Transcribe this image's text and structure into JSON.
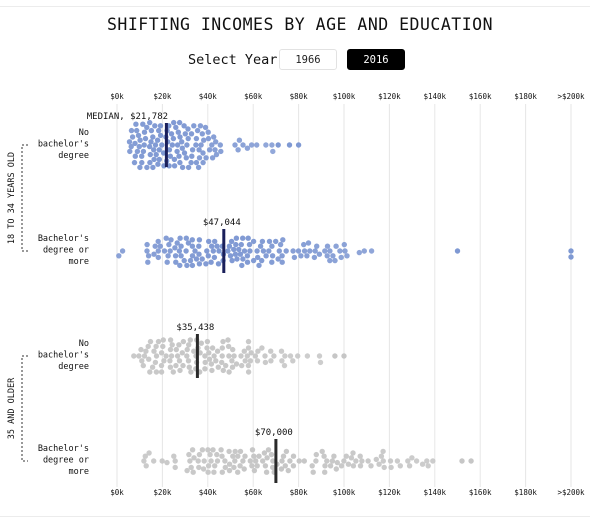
{
  "title": "SHIFTING INCOMES BY AGE AND EDUCATION",
  "year_selector": {
    "label": "Select Year",
    "options": [
      "1966",
      "2016"
    ],
    "selected": "2016"
  },
  "colors": {
    "young": "#7f99d3",
    "older": "#c6c6c6",
    "median_young": "#1a1f5a",
    "median_older": "#2a2a2a",
    "gridline": "#e6e6e6"
  },
  "chart_data": {
    "type": "scatter",
    "subtype": "beeswarm",
    "title": "SHIFTING INCOMES BY AGE AND EDUCATION",
    "x_axis": {
      "min": 0,
      "max": 200000,
      "ticks": [
        {
          "value": 0,
          "label": "$0k"
        },
        {
          "value": 20000,
          "label": "$20k"
        },
        {
          "value": 40000,
          "label": "$40k"
        },
        {
          "value": 60000,
          "label": "$60k"
        },
        {
          "value": 80000,
          "label": "$80k"
        },
        {
          "value": 100000,
          "label": "$100k"
        },
        {
          "value": 120000,
          "label": "$120k"
        },
        {
          "value": 140000,
          "label": "$140k"
        },
        {
          "value": 160000,
          "label": "$160k"
        },
        {
          "value": 180000,
          "label": "$180k"
        },
        {
          "value": 200000,
          "label": ">$200k"
        }
      ],
      "position": "top and bottom",
      "grid": true
    },
    "groups": [
      {
        "label": "18 TO 34 YEARS OLD",
        "rows": [
          0,
          1
        ]
      },
      {
        "label": "35 AND OLDER",
        "rows": [
          2,
          3
        ]
      }
    ],
    "rows": [
      {
        "label_lines": [
          "No",
          "bachelor's",
          "degree"
        ],
        "group": "18 TO 34 YEARS OLD",
        "median": 21782,
        "median_label": "MEDIAN, $21,782",
        "spread": {
          "min": 0,
          "max": 80000,
          "outliers": [
            71000,
            76000,
            80000
          ]
        }
      },
      {
        "label_lines": [
          "Bachelor's",
          "degree or",
          "more"
        ],
        "group": "18 TO 34 YEARS OLD",
        "median": 47044,
        "median_label": "$47,044",
        "spread": {
          "min": 0,
          "max": 127000,
          "outliers": [
            150000,
            200000,
            200000
          ]
        }
      },
      {
        "label_lines": [
          "No",
          "bachelor's",
          "degree"
        ],
        "group": "35 AND OLDER",
        "median": 35438,
        "median_label": "$35,438",
        "spread": {
          "min": 0,
          "max": 100000,
          "outliers": [
            96000,
            100000
          ]
        }
      },
      {
        "label_lines": [
          "Bachelor's",
          "degree or",
          "more"
        ],
        "group": "35 AND OLDER",
        "median": 70000,
        "median_label": "$70,000",
        "spread": {
          "min": 0,
          "max": 156000,
          "outliers": [
            152000,
            156000
          ]
        }
      }
    ]
  }
}
